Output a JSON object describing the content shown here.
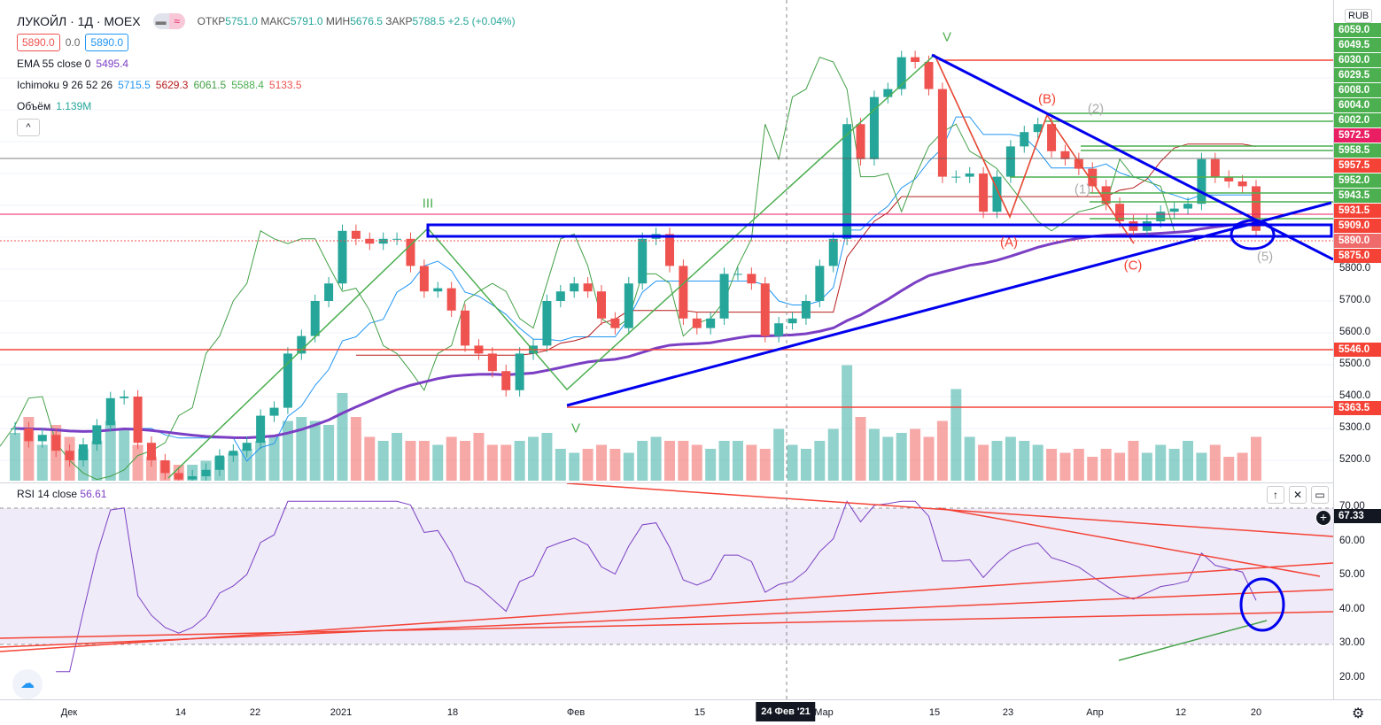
{
  "header": {
    "symbol": "ЛУКОЙЛ · 1Д · MOEX",
    "open_label": "ОТКР",
    "open": "5751.0",
    "high_label": "МАКС",
    "high": "5791.0",
    "low_label": "МИН",
    "low": "5676.5",
    "close_label": "ЗАКР",
    "close": "5788.5",
    "change": "+2.5 (+0.04%)",
    "sell": "5890.0",
    "spread": "0.0",
    "buy": "5890.0"
  },
  "indicators": {
    "ema_label": "EMA 55 close 0",
    "ema_value": "5495.4",
    "ichimoku_label": "Ichimoku 9 26 52 26",
    "ichimoku_values": [
      "5715.5",
      "5629.3",
      "6061.5",
      "5588.4",
      "5133.5"
    ],
    "volume_label": "Объём",
    "volume_value": "1.139M",
    "collapse": "^"
  },
  "currency": "RUB",
  "colors": {
    "up": "#26a69a",
    "down": "#ef5350",
    "ema": "#7b3fc4",
    "tenkan": "#2196f3",
    "kijun": "#b71c1c",
    "chikou": "#43a047",
    "drawing": "#0000ee"
  },
  "price_tags": [
    {
      "v": "6059.0",
      "c": "#4caf50"
    },
    {
      "v": "6049.5",
      "c": "#4caf50"
    },
    {
      "v": "6030.0",
      "c": "#4caf50"
    },
    {
      "v": "6029.5",
      "c": "#4caf50"
    },
    {
      "v": "6008.0",
      "c": "#4caf50"
    },
    {
      "v": "6004.0",
      "c": "#4caf50"
    },
    {
      "v": "6002.0",
      "c": "#4caf50"
    },
    {
      "v": "5972.5",
      "c": "#e91e63"
    },
    {
      "v": "5958.5",
      "c": "#4caf50"
    },
    {
      "v": "5957.5",
      "c": "#f44336"
    },
    {
      "v": "5952.0",
      "c": "#4caf50"
    },
    {
      "v": "5943.5",
      "c": "#4caf50"
    },
    {
      "v": "5931.5",
      "c": "#f44336"
    },
    {
      "v": "5909.0",
      "c": "#f44336"
    },
    {
      "v": "5890.0",
      "c": "#ef6a6a"
    },
    {
      "v": "5875.0",
      "c": "#f44336"
    }
  ],
  "price_ticks": [
    5800,
    5700,
    5600,
    5500,
    5400,
    5300,
    5200
  ],
  "level_tags": [
    {
      "v": "5546.0",
      "price": 5546
    },
    {
      "v": "5363.5",
      "price": 5363.5
    }
  ],
  "wave_labels": {
    "v": "V",
    "iii": "III",
    "iv": "V",
    "a": "(A)",
    "b": "(B)",
    "c": "(C)",
    "one": "(1)",
    "two": "(2)",
    "five": "(5)"
  },
  "rsi": {
    "label": "RSI 14 close",
    "value": "56.61",
    "marker": "67.33",
    "ticks": [
      "70.00",
      "60.00",
      "50.00",
      "40.00",
      "30.00",
      "20.00"
    ]
  },
  "time_axis": [
    "Дек",
    "14",
    "22",
    "2021",
    "18",
    "Фев",
    "15",
    "Мар",
    "15",
    "23",
    "Апр",
    "12",
    "20"
  ],
  "crosshair_date": "24 Фев '21",
  "closes": [
    5300,
    5260,
    5280,
    5230,
    5200,
    5250,
    5310,
    5395,
    5400,
    5255,
    5200,
    5160,
    5140,
    5150,
    5170,
    5215,
    5230,
    5255,
    5340,
    5365,
    5535,
    5590,
    5700,
    5755,
    5920,
    5895,
    5880,
    5895,
    5895,
    5810,
    5730,
    5740,
    5670,
    5560,
    5535,
    5480,
    5420,
    5535,
    5560,
    5700,
    5730,
    5755,
    5730,
    5645,
    5615,
    5755,
    5895,
    5910,
    5810,
    5645,
    5615,
    5645,
    5785,
    5785,
    5755,
    5590,
    5630,
    5645,
    5700,
    5810,
    5895,
    6255,
    6145,
    6340,
    6365,
    6465,
    6450,
    6365,
    6090,
    6090,
    6100,
    5980,
    6090,
    6185,
    6230,
    6255,
    6170,
    6145,
    6115,
    6060,
    6005,
    5950,
    5920,
    5950,
    5980,
    5990,
    6005,
    6145,
    6090,
    6075,
    6060,
    5920
  ],
  "volumes": [
    1.2,
    1.6,
    0.9,
    1.4,
    1.1,
    0.8,
    1.0,
    1.5,
    1.3,
    0.9,
    0.6,
    0.5,
    0.4,
    0.4,
    0.5,
    0.6,
    0.7,
    0.8,
    1.0,
    1.1,
    1.5,
    1.6,
    1.5,
    1.4,
    2.2,
    1.6,
    1.1,
    1.0,
    1.2,
    1.0,
    1.0,
    0.9,
    1.1,
    1.0,
    1.2,
    0.9,
    0.9,
    1.0,
    1.1,
    1.2,
    0.8,
    0.7,
    0.8,
    0.9,
    0.8,
    0.7,
    1.0,
    1.1,
    1.0,
    1.0,
    0.9,
    0.8,
    1.0,
    1.0,
    0.9,
    0.8,
    1.3,
    0.9,
    0.8,
    1.0,
    1.3,
    2.9,
    1.6,
    1.3,
    1.1,
    1.2,
    1.3,
    1.1,
    1.5,
    2.3,
    1.1,
    0.9,
    1.0,
    1.1,
    1.0,
    0.9,
    0.8,
    0.7,
    0.8,
    0.6,
    0.8,
    0.7,
    1.0,
    0.7,
    0.9,
    0.8,
    1.0,
    0.7,
    0.9,
    0.6,
    0.7,
    1.1
  ]
}
